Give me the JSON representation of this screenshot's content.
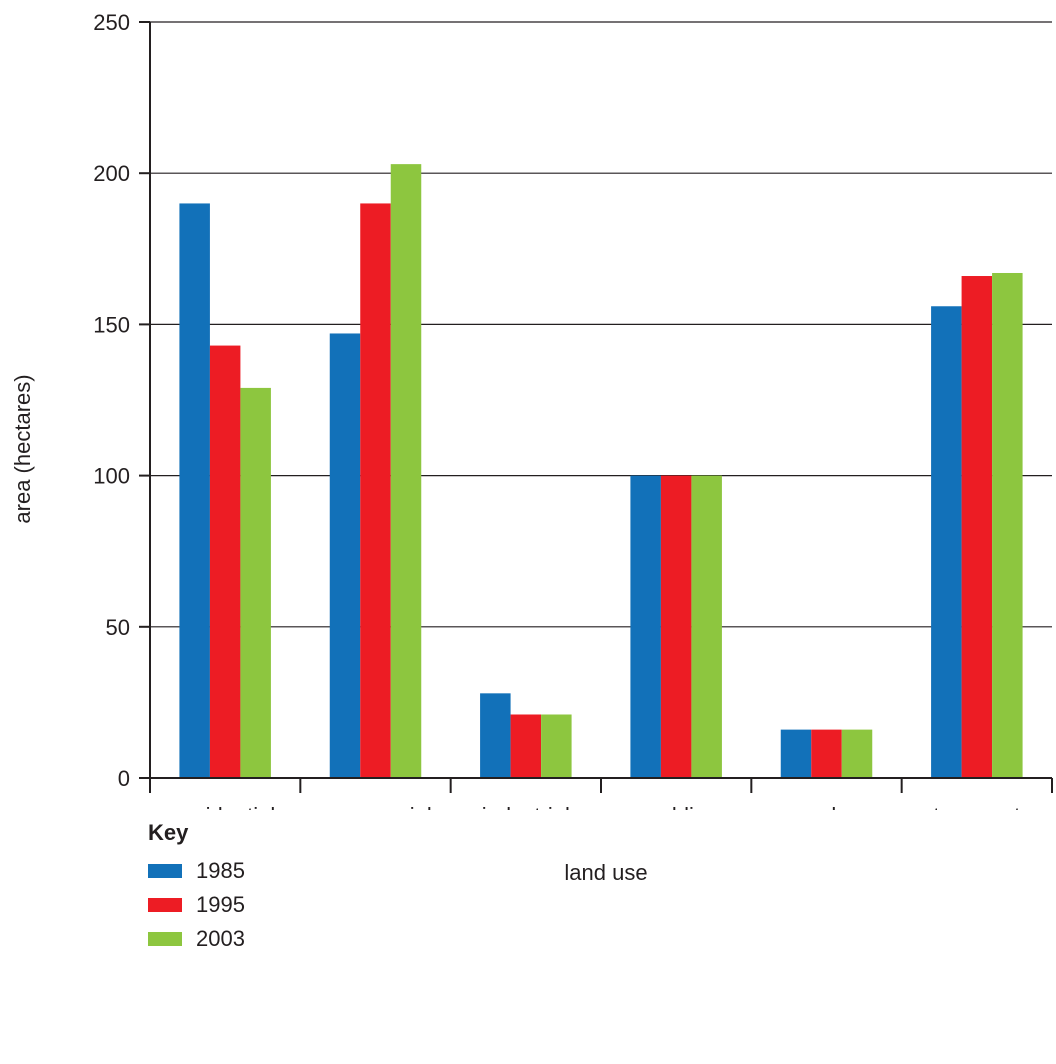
{
  "chart_data": {
    "type": "bar",
    "title": "",
    "xlabel": "land use",
    "ylabel": "area (hectares)",
    "ylim": [
      0,
      250
    ],
    "yticks": [
      0,
      50,
      100,
      150,
      200,
      250
    ],
    "grid": true,
    "categories": [
      "residential",
      "commercial",
      "industrial",
      "public",
      "parks",
      "transport"
    ],
    "series": [
      {
        "name": "1985",
        "color": "#1271b9",
        "values": [
          190,
          147,
          28,
          100,
          16,
          156
        ]
      },
      {
        "name": "1995",
        "color": "#ed1c24",
        "values": [
          143,
          190,
          21,
          100,
          16,
          166
        ]
      },
      {
        "name": "2003",
        "color": "#8dc63f",
        "values": [
          129,
          203,
          21,
          100,
          16,
          167
        ]
      }
    ]
  },
  "key": {
    "title": "Key"
  }
}
